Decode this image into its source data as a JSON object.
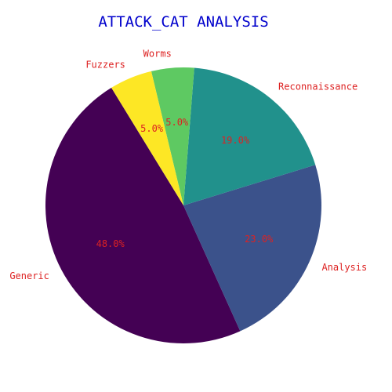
{
  "chart_data": {
    "type": "pie",
    "title": "ATTACK_CAT ANALYSIS",
    "categories": [
      "Generic",
      "Analysis",
      "Reconnaissance",
      "Worms",
      "Fuzzers"
    ],
    "values": [
      48.0,
      23.0,
      19.0,
      5.0,
      5.0
    ],
    "percent_labels": [
      "48.0%",
      "23.0%",
      "19.0%",
      "5.0%",
      "5.0%"
    ],
    "colors": [
      "#440154",
      "#3b528b",
      "#21918c",
      "#5ec962",
      "#fde725"
    ],
    "title_color": "#0000cc",
    "label_color": "#dd2222"
  }
}
